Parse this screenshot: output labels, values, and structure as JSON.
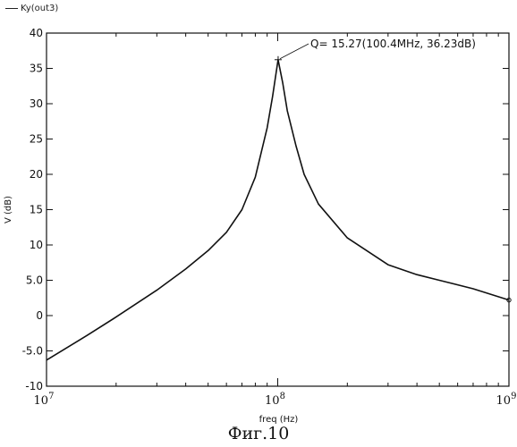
{
  "chart_data": {
    "type": "line",
    "xscale": "log",
    "xlim": [
      10000000,
      1000000000
    ],
    "ylim": [
      -10,
      40
    ],
    "xlabel": "freq (Hz)",
    "ylabel": "V (dB)",
    "xticks": [
      {
        "value": 10000000,
        "base": "10",
        "exp": "7"
      },
      {
        "value": 100000000,
        "base": "10",
        "exp": "8"
      },
      {
        "value": 1000000000,
        "base": "10",
        "exp": "9"
      }
    ],
    "yticks": [
      {
        "value": 40,
        "label": "40"
      },
      {
        "value": 35,
        "label": "35"
      },
      {
        "value": 30,
        "label": "30"
      },
      {
        "value": 25,
        "label": "25"
      },
      {
        "value": 20,
        "label": "20"
      },
      {
        "value": 15,
        "label": "15"
      },
      {
        "value": 10,
        "label": "10"
      },
      {
        "value": 5,
        "label": "5.0"
      },
      {
        "value": 0,
        "label": "0"
      },
      {
        "value": -5,
        "label": "-5.0"
      },
      {
        "value": -10,
        "label": "-10"
      }
    ],
    "series": [
      {
        "name": "Ky(out3)",
        "x": [
          10000000,
          15000000,
          20000000,
          30000000,
          40000000,
          50000000,
          60000000,
          70000000,
          80000000,
          90000000,
          95000000,
          100400000,
          105000000,
          110000000,
          120000000,
          130000000,
          150000000,
          200000000,
          300000000,
          400000000,
          500000000,
          700000000,
          1000000000
        ],
        "y": [
          -6.3,
          -2.8,
          -0.2,
          3.6,
          6.6,
          9.2,
          11.8,
          15.0,
          19.6,
          26.6,
          31.0,
          36.23,
          33.0,
          29.0,
          24.0,
          20.0,
          15.8,
          11.0,
          7.2,
          5.8,
          5.0,
          3.8,
          2.2
        ]
      }
    ],
    "annotation": {
      "text": "Q= 15.27(100.4MHz, 36.23dB)",
      "x": 100400000,
      "y": 36.23
    },
    "caption": "Фиг.10"
  },
  "legend": {
    "label": "Ky(out3)"
  }
}
